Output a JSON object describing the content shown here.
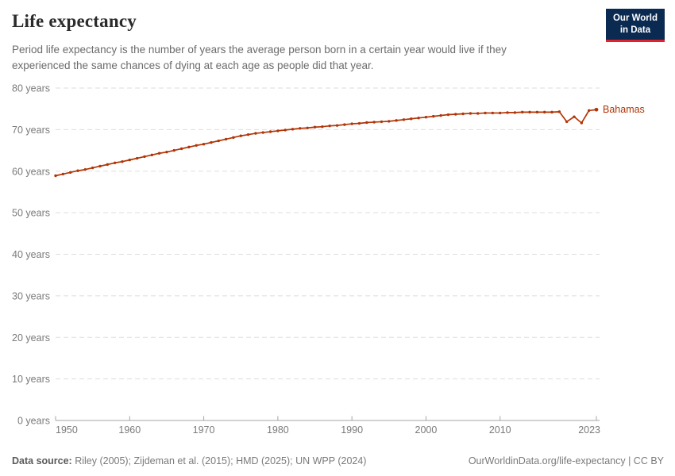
{
  "header": {
    "title": "Life expectancy",
    "subtitle": "Period life expectancy is the number of years the average person born in a certain year would live if they experienced the same chances of dying at each age as people did that year.",
    "logo": {
      "line1": "Our World",
      "line2": "in Data"
    }
  },
  "chart_data": {
    "type": "line",
    "title": "Life expectancy",
    "entity": "Bahamas",
    "xlabel": "",
    "ylabel": "",
    "ylim": [
      0,
      80
    ],
    "ytick_step": 10,
    "ytick_suffix": " years",
    "xticks": [
      1950,
      1960,
      1970,
      1980,
      1990,
      2000,
      2010,
      2023
    ],
    "grid": true,
    "legend_position": "end-of-line-label",
    "colors": {
      "line": "#b13507",
      "grid": "#dddddd",
      "axis": "#a5a5a5",
      "tick_label": "#7a7a7a"
    },
    "x": [
      1950,
      1951,
      1952,
      1953,
      1954,
      1955,
      1956,
      1957,
      1958,
      1959,
      1960,
      1961,
      1962,
      1963,
      1964,
      1965,
      1966,
      1967,
      1968,
      1969,
      1970,
      1971,
      1972,
      1973,
      1974,
      1975,
      1976,
      1977,
      1978,
      1979,
      1980,
      1981,
      1982,
      1983,
      1984,
      1985,
      1986,
      1987,
      1988,
      1989,
      1990,
      1991,
      1992,
      1993,
      1994,
      1995,
      1996,
      1997,
      1998,
      1999,
      2000,
      2001,
      2002,
      2003,
      2004,
      2005,
      2006,
      2007,
      2008,
      2009,
      2010,
      2011,
      2012,
      2013,
      2014,
      2015,
      2016,
      2017,
      2018,
      2019,
      2020,
      2021,
      2022,
      2023
    ],
    "series": [
      {
        "name": "Bahamas",
        "values": [
          58.9,
          59.3,
          59.7,
          60.1,
          60.4,
          60.8,
          61.2,
          61.6,
          62.0,
          62.3,
          62.7,
          63.1,
          63.5,
          63.9,
          64.3,
          64.6,
          65.0,
          65.4,
          65.8,
          66.2,
          66.5,
          66.9,
          67.3,
          67.7,
          68.1,
          68.5,
          68.8,
          69.1,
          69.3,
          69.5,
          69.7,
          69.9,
          70.1,
          70.3,
          70.4,
          70.6,
          70.7,
          70.9,
          71.0,
          71.2,
          71.4,
          71.5,
          71.7,
          71.8,
          71.9,
          72.0,
          72.2,
          72.4,
          72.6,
          72.8,
          73.0,
          73.2,
          73.4,
          73.6,
          73.7,
          73.8,
          73.9,
          73.9,
          74.0,
          74.0,
          74.0,
          74.1,
          74.1,
          74.2,
          74.2,
          74.2,
          74.2,
          74.2,
          74.3,
          71.9,
          73.1,
          71.6,
          74.6,
          74.8
        ]
      }
    ]
  },
  "footer": {
    "datasource_label": "Data source:",
    "datasource_text": " Riley (2005); Zijdeman et al. (2015); HMD (2025); UN WPP (2024)",
    "attribution": "OurWorldinData.org/life-expectancy | CC BY"
  }
}
